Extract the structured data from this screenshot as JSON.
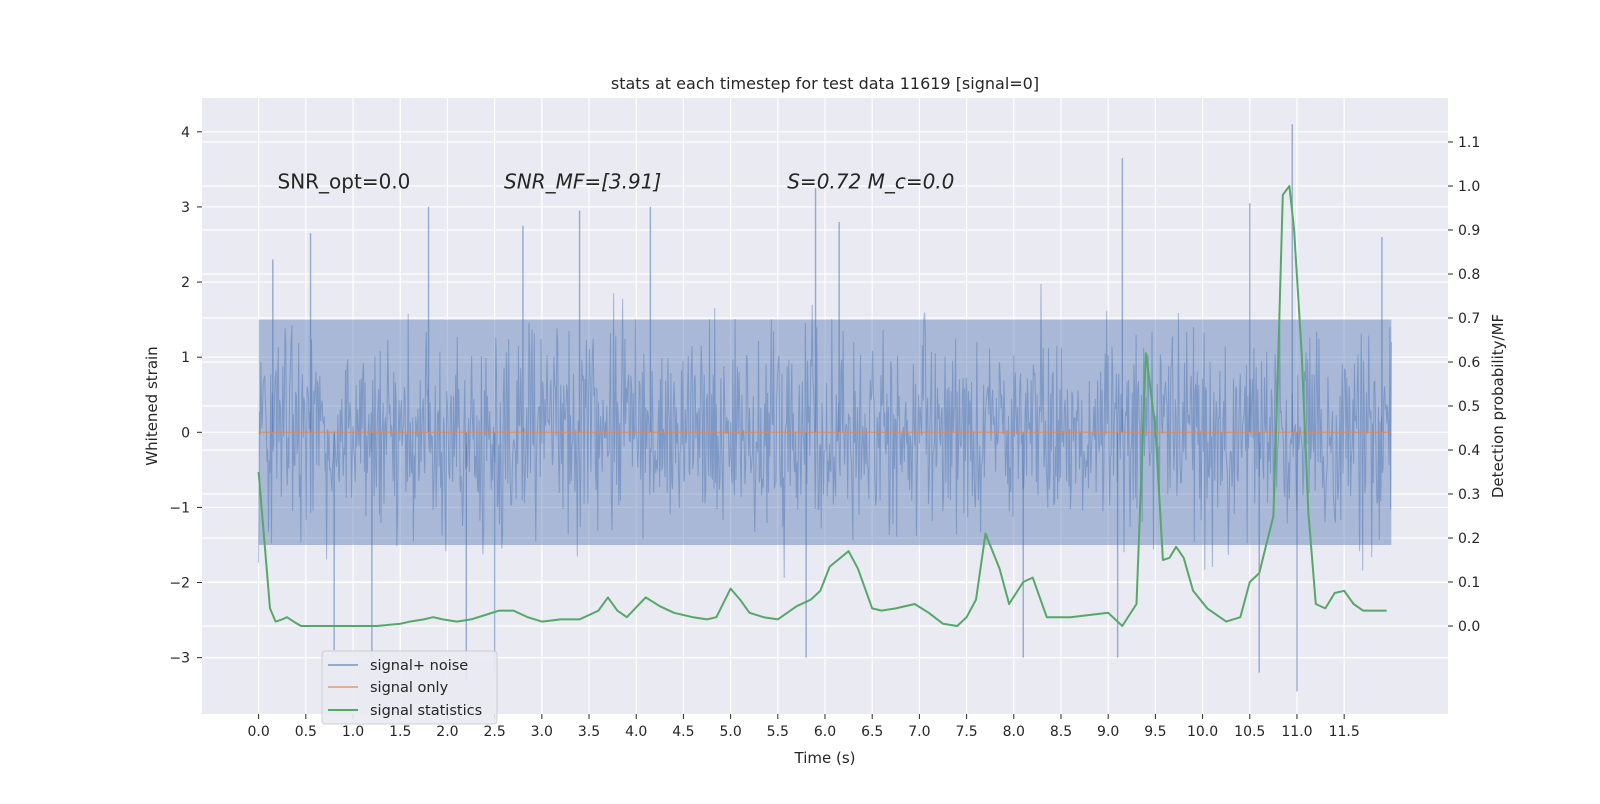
{
  "chart_data": {
    "type": "line",
    "title": "stats at each timestep for test data 11619 [signal=0]",
    "xlabel": "Time (s)",
    "ylabel_left": "Whitened strain",
    "ylabel_right": "Detection probability/MF",
    "xlim": [
      -0.6,
      12.6
    ],
    "ylim_left": [
      -3.75,
      4.45
    ],
    "ylim_right": [
      -0.2,
      1.2
    ],
    "x_ticks": [
      0.0,
      0.5,
      1.0,
      1.5,
      2.0,
      2.5,
      3.0,
      3.5,
      4.0,
      4.5,
      5.0,
      5.5,
      6.0,
      6.5,
      7.0,
      7.5,
      8.0,
      8.5,
      9.0,
      9.5,
      10.0,
      10.5,
      11.0,
      11.5
    ],
    "x_tick_labels": [
      "0.0",
      "0.5",
      "1.0",
      "1.5",
      "2.0",
      "2.5",
      "3.0",
      "3.5",
      "4.0",
      "4.5",
      "5.0",
      "5.5",
      "6.0",
      "6.5",
      "7.0",
      "7.5",
      "8.0",
      "8.5",
      "9.0",
      "9.5",
      "10.0",
      "10.5",
      "11.0",
      "11.5"
    ],
    "y_left_ticks": [
      -3,
      -2,
      -1,
      0,
      1,
      2,
      3,
      4
    ],
    "y_left_tick_labels": [
      "−3",
      "−2",
      "−1",
      "0",
      "1",
      "2",
      "3",
      "4"
    ],
    "y_right_ticks": [
      0.0,
      0.1,
      0.2,
      0.3,
      0.4,
      0.5,
      0.6,
      0.7,
      0.8,
      0.9,
      1.0,
      1.1
    ],
    "y_right_tick_labels": [
      "0.0",
      "0.1",
      "0.2",
      "0.3",
      "0.4",
      "0.5",
      "0.6",
      "0.7",
      "0.8",
      "0.9",
      "1.0",
      "1.1"
    ],
    "grid": true,
    "legend_position": "lower-left",
    "annotations": [
      {
        "id": "snr-opt",
        "x": 0.2,
        "y": 3.35,
        "text": "SNR_opt=0.0",
        "italic": false
      },
      {
        "id": "snr-mf",
        "x": 2.6,
        "y": 3.35,
        "text": "SNR_MF=[3.91]",
        "italic": true
      },
      {
        "id": "s-mc",
        "x": 5.6,
        "y": 3.35,
        "text": "S=0.72   M_c=0.0",
        "italic": true
      }
    ],
    "series": [
      {
        "name": "signal+ noise",
        "axis": "left",
        "color": "#4c72b0",
        "opacity": 0.5,
        "style": "noise",
        "x_range": [
          0.0,
          12.0
        ],
        "approx_envelope": [
          -1.5,
          1.5
        ],
        "peaks": [
          {
            "x": 0.15,
            "y": 2.3
          },
          {
            "x": 0.55,
            "y": 2.65
          },
          {
            "x": 1.8,
            "y": 3.0
          },
          {
            "x": 2.8,
            "y": 2.75
          },
          {
            "x": 3.4,
            "y": 2.95
          },
          {
            "x": 4.15,
            "y": 3.0
          },
          {
            "x": 5.9,
            "y": 3.25
          },
          {
            "x": 6.15,
            "y": 2.8
          },
          {
            "x": 9.15,
            "y": 3.65
          },
          {
            "x": 10.5,
            "y": 3.05
          },
          {
            "x": 10.95,
            "y": 4.1
          },
          {
            "x": 11.9,
            "y": 2.6
          },
          {
            "x": 0.8,
            "y": -2.9
          },
          {
            "x": 1.2,
            "y": -3.0
          },
          {
            "x": 2.2,
            "y": -3.3
          },
          {
            "x": 2.5,
            "y": -3.2
          },
          {
            "x": 5.8,
            "y": -3.0
          },
          {
            "x": 8.1,
            "y": -3.0
          },
          {
            "x": 9.1,
            "y": -3.0
          },
          {
            "x": 11.0,
            "y": -3.45
          },
          {
            "x": 10.6,
            "y": -3.2
          }
        ]
      },
      {
        "name": "signal only",
        "axis": "left",
        "color": "#dd8452",
        "x": [
          0.0,
          12.0
        ],
        "values": [
          0.0,
          0.0
        ]
      },
      {
        "name": "signal statistics",
        "axis": "right",
        "color": "#55a868",
        "x": [
          0.0,
          0.05,
          0.12,
          0.18,
          0.25,
          0.3,
          0.37,
          0.45,
          0.55,
          0.75,
          1.0,
          1.25,
          1.5,
          1.6,
          1.75,
          1.85,
          1.95,
          2.1,
          2.25,
          2.4,
          2.55,
          2.7,
          2.85,
          3.0,
          3.2,
          3.4,
          3.6,
          3.7,
          3.8,
          3.9,
          4.1,
          4.25,
          4.4,
          4.6,
          4.75,
          4.85,
          5.0,
          5.1,
          5.2,
          5.35,
          5.5,
          5.7,
          5.85,
          5.95,
          6.05,
          6.25,
          6.35,
          6.5,
          6.6,
          6.75,
          6.95,
          7.1,
          7.25,
          7.4,
          7.5,
          7.6,
          7.7,
          7.85,
          7.95,
          8.1,
          8.2,
          8.35,
          8.6,
          8.8,
          9.0,
          9.15,
          9.3,
          9.4,
          9.5,
          9.58,
          9.65,
          9.72,
          9.8,
          9.9,
          10.05,
          10.25,
          10.4,
          10.5,
          10.6,
          10.75,
          10.8,
          10.85,
          10.92,
          10.97,
          11.05,
          11.12,
          11.2,
          11.3,
          11.4,
          11.5,
          11.6,
          11.7,
          11.8,
          11.95
        ],
        "values": [
          0.35,
          0.22,
          0.04,
          0.01,
          0.015,
          0.02,
          0.01,
          0.0,
          0.0,
          0.0,
          0.0,
          0.0,
          0.005,
          0.01,
          0.015,
          0.02,
          0.015,
          0.01,
          0.015,
          0.025,
          0.035,
          0.035,
          0.02,
          0.01,
          0.015,
          0.015,
          0.035,
          0.065,
          0.035,
          0.02,
          0.065,
          0.045,
          0.03,
          0.02,
          0.015,
          0.02,
          0.085,
          0.06,
          0.03,
          0.02,
          0.015,
          0.045,
          0.06,
          0.08,
          0.135,
          0.17,
          0.13,
          0.04,
          0.035,
          0.04,
          0.05,
          0.03,
          0.005,
          0.0,
          0.02,
          0.06,
          0.21,
          0.13,
          0.05,
          0.1,
          0.11,
          0.02,
          0.02,
          0.025,
          0.03,
          0.0,
          0.05,
          0.62,
          0.45,
          0.15,
          0.155,
          0.18,
          0.155,
          0.08,
          0.04,
          0.01,
          0.02,
          0.1,
          0.12,
          0.25,
          0.6,
          0.98,
          1.0,
          0.9,
          0.62,
          0.26,
          0.05,
          0.04,
          0.075,
          0.08,
          0.05,
          0.035,
          0.035,
          0.035
        ]
      }
    ]
  }
}
